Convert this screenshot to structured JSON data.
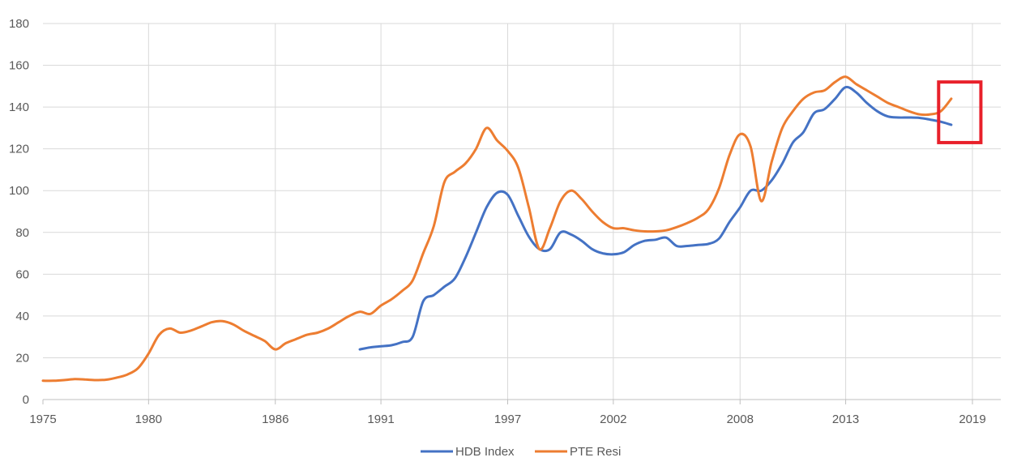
{
  "chart_data": {
    "type": "line",
    "title": "",
    "xlabel": "",
    "ylabel": "",
    "xlim": [
      1975,
      2019
    ],
    "ylim": [
      0,
      180
    ],
    "x_ticks": [
      "1975",
      "1980",
      "1986",
      "1991",
      "1997",
      "2002",
      "2008",
      "2013",
      "2019"
    ],
    "y_ticks": [
      "0",
      "20",
      "40",
      "60",
      "80",
      "100",
      "120",
      "140",
      "160",
      "180"
    ],
    "grid": true,
    "legend_position": "bottom",
    "series": [
      {
        "name": "HDB Index",
        "color": "#4472C4",
        "points": [
          [
            1990.0,
            24
          ],
          [
            1990.5,
            25
          ],
          [
            1991.0,
            25.5
          ],
          [
            1991.5,
            26
          ],
          [
            1992.0,
            27.5
          ],
          [
            1992.5,
            30
          ],
          [
            1993.0,
            47
          ],
          [
            1993.5,
            50
          ],
          [
            1994.0,
            54
          ],
          [
            1994.5,
            58
          ],
          [
            1995.0,
            68
          ],
          [
            1995.5,
            80
          ],
          [
            1996.0,
            92
          ],
          [
            1996.5,
            99
          ],
          [
            1997.0,
            98
          ],
          [
            1997.5,
            88
          ],
          [
            1998.0,
            78
          ],
          [
            1998.5,
            72
          ],
          [
            1999.0,
            72
          ],
          [
            1999.5,
            80
          ],
          [
            2000.0,
            79
          ],
          [
            2000.5,
            76
          ],
          [
            2001.0,
            72
          ],
          [
            2001.5,
            70
          ],
          [
            2002.0,
            69.5
          ],
          [
            2002.5,
            70.5
          ],
          [
            2003.0,
            74
          ],
          [
            2003.5,
            76
          ],
          [
            2004.0,
            76.5
          ],
          [
            2004.5,
            77.5
          ],
          [
            2005.0,
            73.5
          ],
          [
            2005.5,
            73.5
          ],
          [
            2006.0,
            74
          ],
          [
            2006.5,
            74.5
          ],
          [
            2007.0,
            77
          ],
          [
            2007.5,
            85
          ],
          [
            2008.0,
            92
          ],
          [
            2008.5,
            100
          ],
          [
            2009.0,
            100
          ],
          [
            2009.5,
            105
          ],
          [
            2010.0,
            113
          ],
          [
            2010.5,
            123
          ],
          [
            2011.0,
            128
          ],
          [
            2011.5,
            137
          ],
          [
            2012.0,
            139
          ],
          [
            2012.5,
            144
          ],
          [
            2013.0,
            149.5
          ],
          [
            2013.5,
            147
          ],
          [
            2014.0,
            142
          ],
          [
            2014.5,
            138
          ],
          [
            2015.0,
            135.5
          ],
          [
            2015.5,
            135
          ],
          [
            2016.0,
            135
          ],
          [
            2016.5,
            134.8
          ],
          [
            2017.0,
            134
          ],
          [
            2017.5,
            133
          ],
          [
            2018.0,
            131.5
          ]
        ]
      },
      {
        "name": "PTE Resi",
        "color": "#ED7D31",
        "points": [
          [
            1975.0,
            9
          ],
          [
            1975.5,
            9
          ],
          [
            1976.0,
            9.3
          ],
          [
            1976.5,
            9.8
          ],
          [
            1977.0,
            9.6
          ],
          [
            1977.5,
            9.3
          ],
          [
            1978.0,
            9.5
          ],
          [
            1978.5,
            10.5
          ],
          [
            1979.0,
            12
          ],
          [
            1979.5,
            15
          ],
          [
            1980.0,
            22
          ],
          [
            1980.5,
            31
          ],
          [
            1981.0,
            34
          ],
          [
            1981.5,
            32
          ],
          [
            1982.0,
            33
          ],
          [
            1982.5,
            35
          ],
          [
            1983.0,
            37
          ],
          [
            1983.5,
            37.5
          ],
          [
            1984.0,
            36
          ],
          [
            1984.5,
            33
          ],
          [
            1985.0,
            30.5
          ],
          [
            1985.5,
            28
          ],
          [
            1986.0,
            24
          ],
          [
            1986.5,
            27
          ],
          [
            1987.0,
            29
          ],
          [
            1987.5,
            31
          ],
          [
            1988.0,
            32
          ],
          [
            1988.5,
            34
          ],
          [
            1989.0,
            37
          ],
          [
            1989.5,
            40
          ],
          [
            1990.0,
            42
          ],
          [
            1990.5,
            41
          ],
          [
            1991.0,
            45
          ],
          [
            1991.5,
            48
          ],
          [
            1992.0,
            52
          ],
          [
            1992.5,
            57
          ],
          [
            1993.0,
            70
          ],
          [
            1993.5,
            83
          ],
          [
            1994.0,
            104
          ],
          [
            1994.5,
            109
          ],
          [
            1995.0,
            113
          ],
          [
            1995.5,
            120
          ],
          [
            1996.0,
            130
          ],
          [
            1996.5,
            124
          ],
          [
            1997.0,
            119
          ],
          [
            1997.5,
            111
          ],
          [
            1998.0,
            92
          ],
          [
            1998.5,
            72
          ],
          [
            1999.0,
            82
          ],
          [
            1999.5,
            95
          ],
          [
            2000.0,
            100
          ],
          [
            2000.5,
            96
          ],
          [
            2001.0,
            90
          ],
          [
            2001.5,
            85
          ],
          [
            2002.0,
            82
          ],
          [
            2002.5,
            82
          ],
          [
            2003.0,
            81
          ],
          [
            2003.5,
            80.5
          ],
          [
            2004.0,
            80.5
          ],
          [
            2004.5,
            81
          ],
          [
            2005.0,
            82.5
          ],
          [
            2005.5,
            84.5
          ],
          [
            2006.0,
            87
          ],
          [
            2006.5,
            91
          ],
          [
            2007.0,
            101
          ],
          [
            2007.5,
            117
          ],
          [
            2008.0,
            127
          ],
          [
            2008.5,
            121
          ],
          [
            2009.0,
            95
          ],
          [
            2009.5,
            114
          ],
          [
            2010.0,
            130
          ],
          [
            2010.5,
            138
          ],
          [
            2011.0,
            144
          ],
          [
            2011.5,
            147
          ],
          [
            2012.0,
            148
          ],
          [
            2012.5,
            152
          ],
          [
            2013.0,
            154.5
          ],
          [
            2013.5,
            151
          ],
          [
            2014.0,
            148
          ],
          [
            2014.5,
            145
          ],
          [
            2015.0,
            142
          ],
          [
            2015.5,
            140
          ],
          [
            2016.0,
            138
          ],
          [
            2016.5,
            136.5
          ],
          [
            2017.0,
            136.5
          ],
          [
            2017.5,
            138
          ],
          [
            2018.0,
            144
          ]
        ]
      }
    ],
    "annotations": [
      {
        "type": "rectangle",
        "color": "#E8202A",
        "x_range": [
          2017.4,
          2019.4
        ],
        "y_range": [
          123,
          152
        ]
      }
    ]
  }
}
